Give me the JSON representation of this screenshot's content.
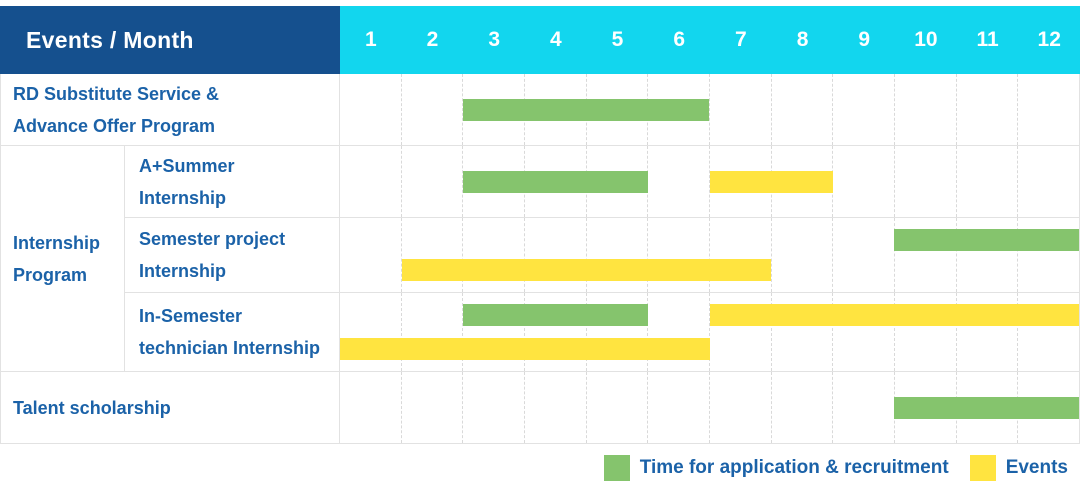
{
  "header": {
    "title": "Events / Month",
    "months": [
      "1",
      "2",
      "3",
      "4",
      "5",
      "6",
      "7",
      "8",
      "9",
      "10",
      "11",
      "12"
    ]
  },
  "chart_data": {
    "type": "gantt",
    "title": "Events / Month",
    "x_unit": "month",
    "x_range": [
      1,
      12
    ],
    "group_label": "Internship Program",
    "rows": [
      {
        "label": "RD Substitute Service &\nAdvance Offer Program",
        "group": null,
        "bars": [
          {
            "type": "application",
            "start_month": 3,
            "end_month": 6,
            "line": "single"
          }
        ]
      },
      {
        "label": "A+Summer\nInternship",
        "group": "Internship Program",
        "bars": [
          {
            "type": "application",
            "start_month": 3,
            "end_month": 5,
            "line": "single"
          },
          {
            "type": "event",
            "start_month": 7,
            "end_month": 8,
            "line": "single"
          }
        ]
      },
      {
        "label": "Semester project\nInternship",
        "group": "Internship Program",
        "bars": [
          {
            "type": "application",
            "start_month": 10,
            "end_month": 12,
            "line": "top"
          },
          {
            "type": "event",
            "start_month": 2,
            "end_month": 7,
            "line": "bottom"
          }
        ]
      },
      {
        "label": "In-Semester\ntechnician Internship",
        "group": "Internship Program",
        "bars": [
          {
            "type": "application",
            "start_month": 3,
            "end_month": 5,
            "line": "top"
          },
          {
            "type": "event",
            "start_month": 7,
            "end_month": 12,
            "line": "top"
          },
          {
            "type": "event",
            "start_month": 1,
            "end_month": 6,
            "line": "bottom"
          }
        ]
      },
      {
        "label": "Talent scholarship",
        "group": null,
        "bars": [
          {
            "type": "application",
            "start_month": 10,
            "end_month": 12,
            "line": "single"
          }
        ]
      }
    ],
    "legend": [
      {
        "type": "application",
        "label": "Time for application & recruitment",
        "color": "#85c46d"
      },
      {
        "type": "event",
        "label": "Events",
        "color": "#ffe440"
      }
    ]
  },
  "colors": {
    "application": "#85c46d",
    "event": "#ffe440",
    "header_bg": "#15508e",
    "months_bg": "#12d6ee",
    "label_text": "#1b62a8",
    "grid_line": "#e2e2e2"
  }
}
